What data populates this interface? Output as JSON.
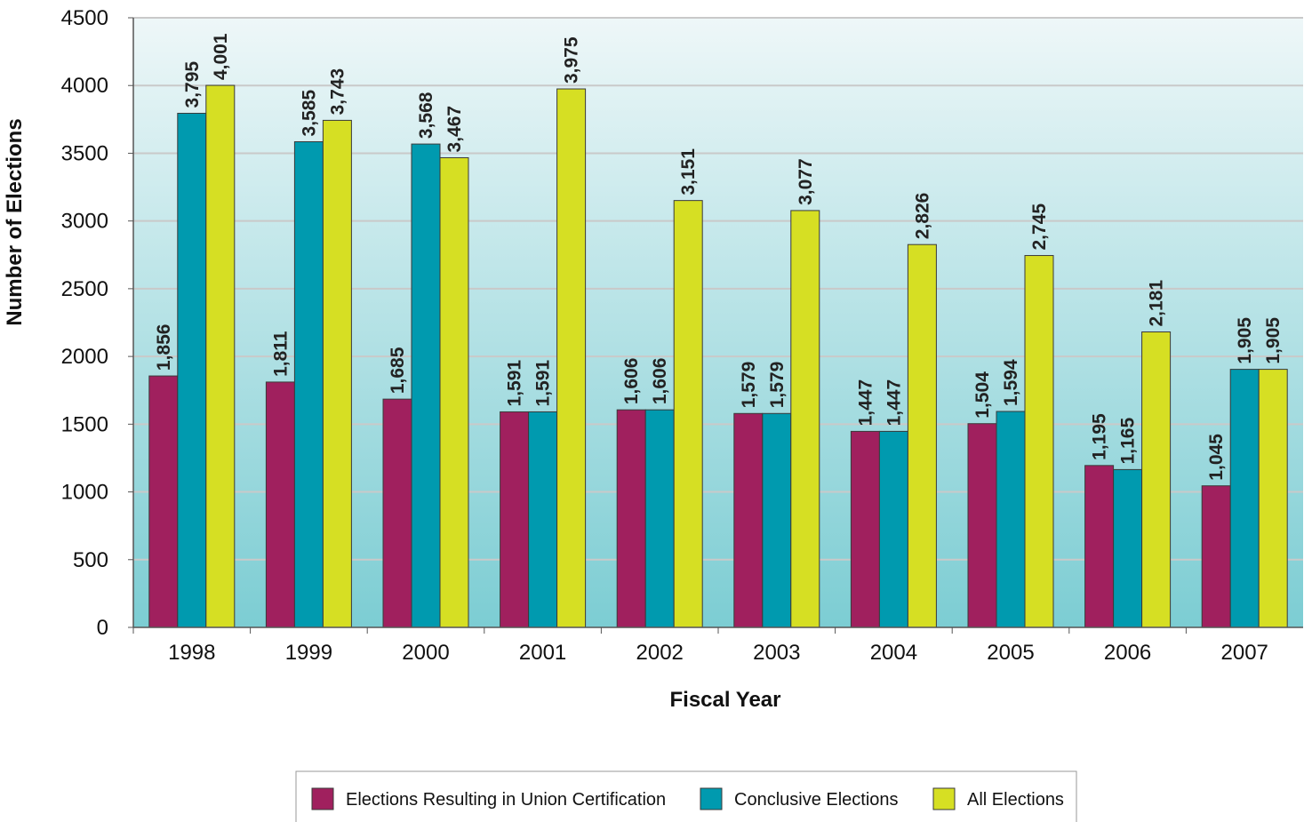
{
  "chart_data": {
    "type": "bar",
    "xlabel": "Fiscal Year",
    "ylabel": "Number of Elections",
    "ylim": [
      0,
      4500
    ],
    "yticks": [
      0,
      500,
      1000,
      1500,
      2000,
      2500,
      3000,
      3500,
      4000,
      4500
    ],
    "grid": true,
    "legend_position": "bottom",
    "categories": [
      "1998",
      "1999",
      "2000",
      "2001",
      "2002",
      "2003",
      "2004",
      "2005",
      "2006",
      "2007"
    ],
    "series": [
      {
        "name": "Elections Resulting in Union Certification",
        "color": "#a0205e",
        "values": [
          1856,
          1811,
          1685,
          1591,
          1606,
          1579,
          1447,
          1504,
          1195,
          1045
        ],
        "labels": [
          "1,856",
          "1,811",
          "1,685",
          "1,591",
          "1,606",
          "1,579",
          "1,447",
          "1,504",
          "1,195",
          "1,045"
        ]
      },
      {
        "name": "Conclusive Elections",
        "color": "#009aaf",
        "values": [
          3795,
          3585,
          3568,
          1591,
          1606,
          1579,
          1447,
          1594,
          1165,
          1905
        ],
        "labels": [
          "3,795",
          "3,585",
          "3,568",
          "1,591",
          "1,606",
          "1,579",
          "1,447",
          "1,594",
          "1,165",
          "1,905"
        ]
      },
      {
        "name": "All Elections",
        "color": "#d6df23",
        "values": [
          4001,
          3743,
          3467,
          3975,
          3151,
          3077,
          2826,
          2745,
          2181,
          1905
        ],
        "labels": [
          "4,001",
          "3,743",
          "3,467",
          "3,975",
          "3,151",
          "3,077",
          "2,826",
          "2,745",
          "2,181",
          "1,905"
        ]
      }
    ]
  }
}
